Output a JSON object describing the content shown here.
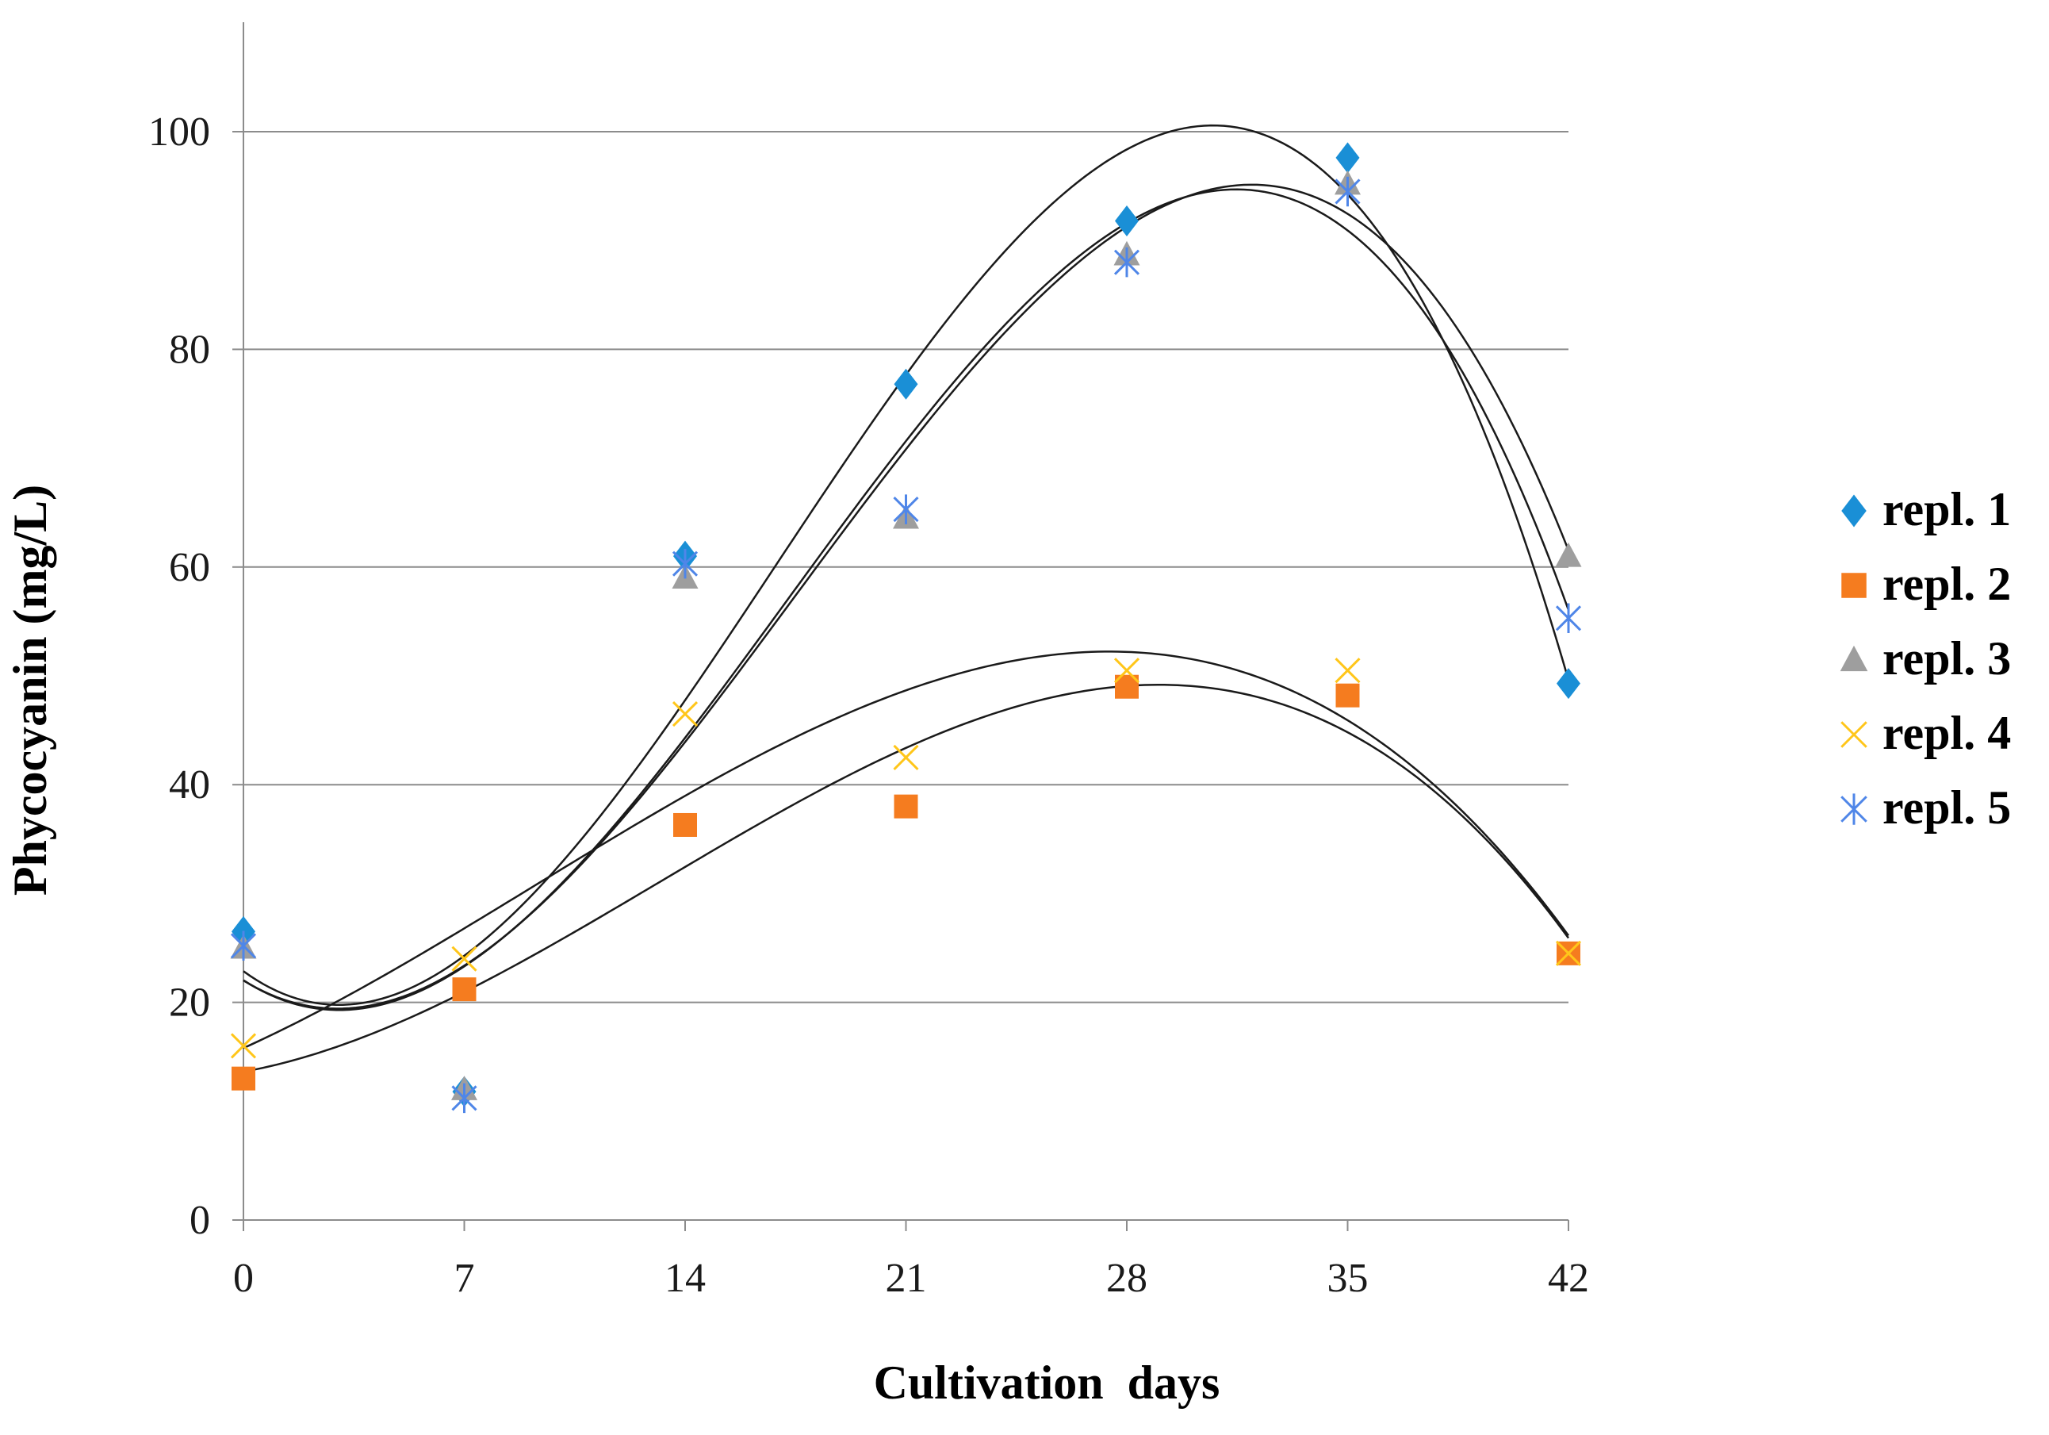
{
  "chart_data": {
    "type": "scatter",
    "title": "",
    "xlabel": "Cultivation  days",
    "ylabel": "Phycocyanin (mg/L)",
    "xlim": [
      0,
      42
    ],
    "ylim": [
      0,
      110
    ],
    "x": [
      0,
      7,
      14,
      21,
      28,
      35,
      42
    ],
    "x_tick_labels": [
      "0",
      "7",
      "14",
      "21",
      "28",
      "35",
      "42"
    ],
    "y_ticks": [
      0,
      20,
      40,
      60,
      80,
      100
    ],
    "y_tick_labels": [
      "0",
      "20",
      "40",
      "60",
      "80",
      "100"
    ],
    "grid": "horizontal",
    "legend_position": "right",
    "trendline": "polynomial",
    "series": [
      {
        "name": "repl. 1",
        "marker": "diamond",
        "color": "#1a8fd6",
        "values": [
          26.5,
          11.8,
          61,
          76.8,
          91.8,
          97.6,
          49.3
        ]
      },
      {
        "name": "repl. 2",
        "marker": "square",
        "color": "#f57c1f",
        "values": [
          13,
          21.2,
          36.3,
          38,
          49,
          48.2,
          24.5
        ]
      },
      {
        "name": "repl. 3",
        "marker": "triangle",
        "color": "#9e9e9e",
        "values": [
          25,
          12,
          59,
          64.5,
          88.7,
          95.2,
          61
        ]
      },
      {
        "name": "repl. 4",
        "marker": "x",
        "color": "#ffc61a",
        "values": [
          16,
          24,
          46.5,
          42.5,
          50.5,
          50.5,
          24.5
        ]
      },
      {
        "name": "repl. 5",
        "marker": "asterisk",
        "color": "#4f86e8",
        "values": [
          25.2,
          11.2,
          60.3,
          65.3,
          88,
          94.5,
          55.3
        ]
      }
    ]
  }
}
